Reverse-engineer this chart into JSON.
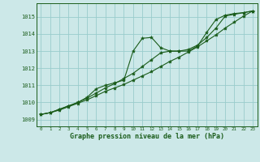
{
  "title": "Graphe pression niveau de la mer (hPa)",
  "bg_color": "#cce8e8",
  "grid_color": "#99cccc",
  "line_color": "#1a5c1a",
  "marker_color": "#1a5c1a",
  "xlim": [
    -0.5,
    23.5
  ],
  "ylim": [
    1008.6,
    1015.8
  ],
  "yticks": [
    1009,
    1010,
    1011,
    1012,
    1013,
    1014,
    1015
  ],
  "xticks": [
    0,
    1,
    2,
    3,
    4,
    5,
    6,
    7,
    8,
    9,
    10,
    11,
    12,
    13,
    14,
    15,
    16,
    17,
    18,
    19,
    20,
    21,
    22,
    23
  ],
  "series1": [
    1009.3,
    1009.4,
    1009.6,
    1009.8,
    1010.0,
    1010.3,
    1010.8,
    1011.0,
    1011.15,
    1011.3,
    1013.0,
    1013.75,
    1013.8,
    1013.2,
    1013.0,
    1013.0,
    1013.0,
    1013.3,
    1014.1,
    1014.85,
    1015.1,
    1015.2,
    1015.25,
    1015.35
  ],
  "series2": [
    1009.3,
    1009.4,
    1009.6,
    1009.8,
    1010.0,
    1010.25,
    1010.55,
    1010.85,
    1011.1,
    1011.4,
    1011.7,
    1012.1,
    1012.5,
    1012.9,
    1013.0,
    1013.0,
    1013.1,
    1013.35,
    1013.8,
    1014.35,
    1015.05,
    1015.15,
    1015.25,
    1015.35
  ],
  "series3": [
    1009.3,
    1009.4,
    1009.55,
    1009.75,
    1009.95,
    1010.15,
    1010.4,
    1010.65,
    1010.85,
    1011.05,
    1011.3,
    1011.55,
    1011.8,
    1012.1,
    1012.4,
    1012.65,
    1012.95,
    1013.25,
    1013.6,
    1013.95,
    1014.35,
    1014.7,
    1015.05,
    1015.35
  ]
}
